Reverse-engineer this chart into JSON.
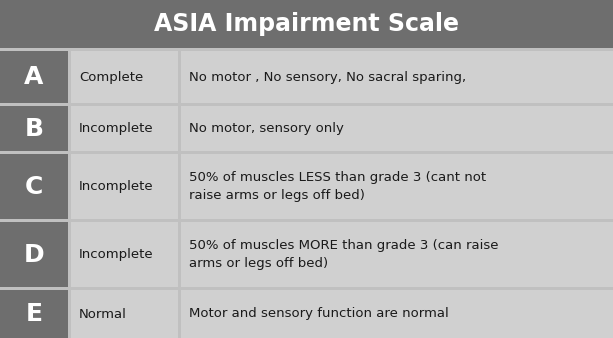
{
  "title": "ASIA Impairment Scale",
  "title_bg": "#6e6e6e",
  "title_color": "#ffffff",
  "title_fontsize": 17,
  "letter_bg": "#6e6e6e",
  "letter_color": "#ffffff",
  "row_bg": "#d0d0d0",
  "outer_bg": "#c0c0c0",
  "border_color": "#aaaaaa",
  "rows": [
    {
      "letter": "A",
      "type": "Complete",
      "description": "No motor , No sensory, No sacral sparing,"
    },
    {
      "letter": "B",
      "type": "Incomplete",
      "description": "No motor, sensory only"
    },
    {
      "letter": "C",
      "type": "Incomplete",
      "description": "50% of muscles LESS than grade 3 (cant not\nraise arms or legs off bed)"
    },
    {
      "letter": "D",
      "type": "Incomplete",
      "description": "50% of muscles MORE than grade 3 (can raise\narms or legs off bed)"
    },
    {
      "letter": "E",
      "type": "Normal",
      "description": "Motor and sensory function are normal"
    }
  ],
  "text_fontsize": 9.5,
  "letter_fontsize": 18,
  "type_fontsize": 9.5
}
